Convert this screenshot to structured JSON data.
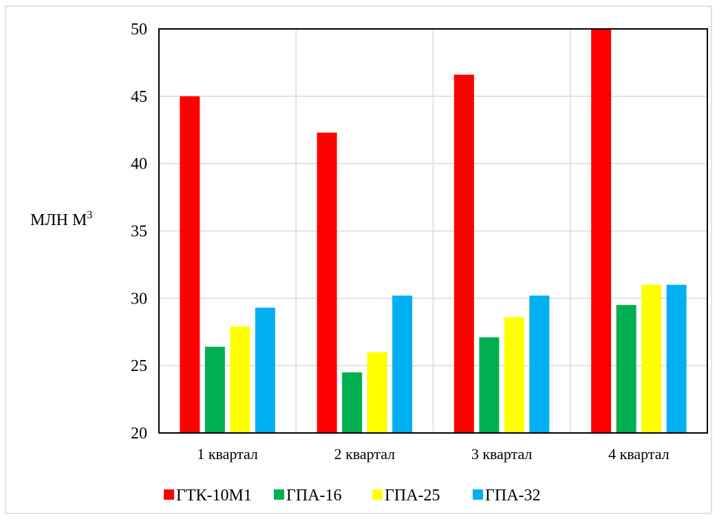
{
  "chart_data": {
    "type": "bar",
    "title": "",
    "xlabel": "",
    "ylabel": "МЛН М",
    "ylabel_superscript": "3",
    "categories": [
      "1 квартал",
      "2 квартал",
      "3 квартал",
      "4 квартал"
    ],
    "series": [
      {
        "name": "ГТК-10М1",
        "color": "#ff0000",
        "values": [
          45.0,
          42.3,
          46.6,
          50.0
        ]
      },
      {
        "name": "ГПА-16",
        "color": "#00b050",
        "values": [
          26.4,
          24.5,
          27.1,
          29.5
        ]
      },
      {
        "name": "ГПА-25",
        "color": "#ffff00",
        "values": [
          27.9,
          26.0,
          28.6,
          31.0
        ]
      },
      {
        "name": "ГПА-32",
        "color": "#00b0f0",
        "values": [
          29.3,
          30.2,
          30.2,
          31.0
        ]
      }
    ],
    "ylim": [
      20,
      50
    ],
    "yticks": [
      "20",
      "25",
      "30",
      "35",
      "40",
      "45",
      "50"
    ],
    "grid": true,
    "legend_position": "bottom"
  }
}
